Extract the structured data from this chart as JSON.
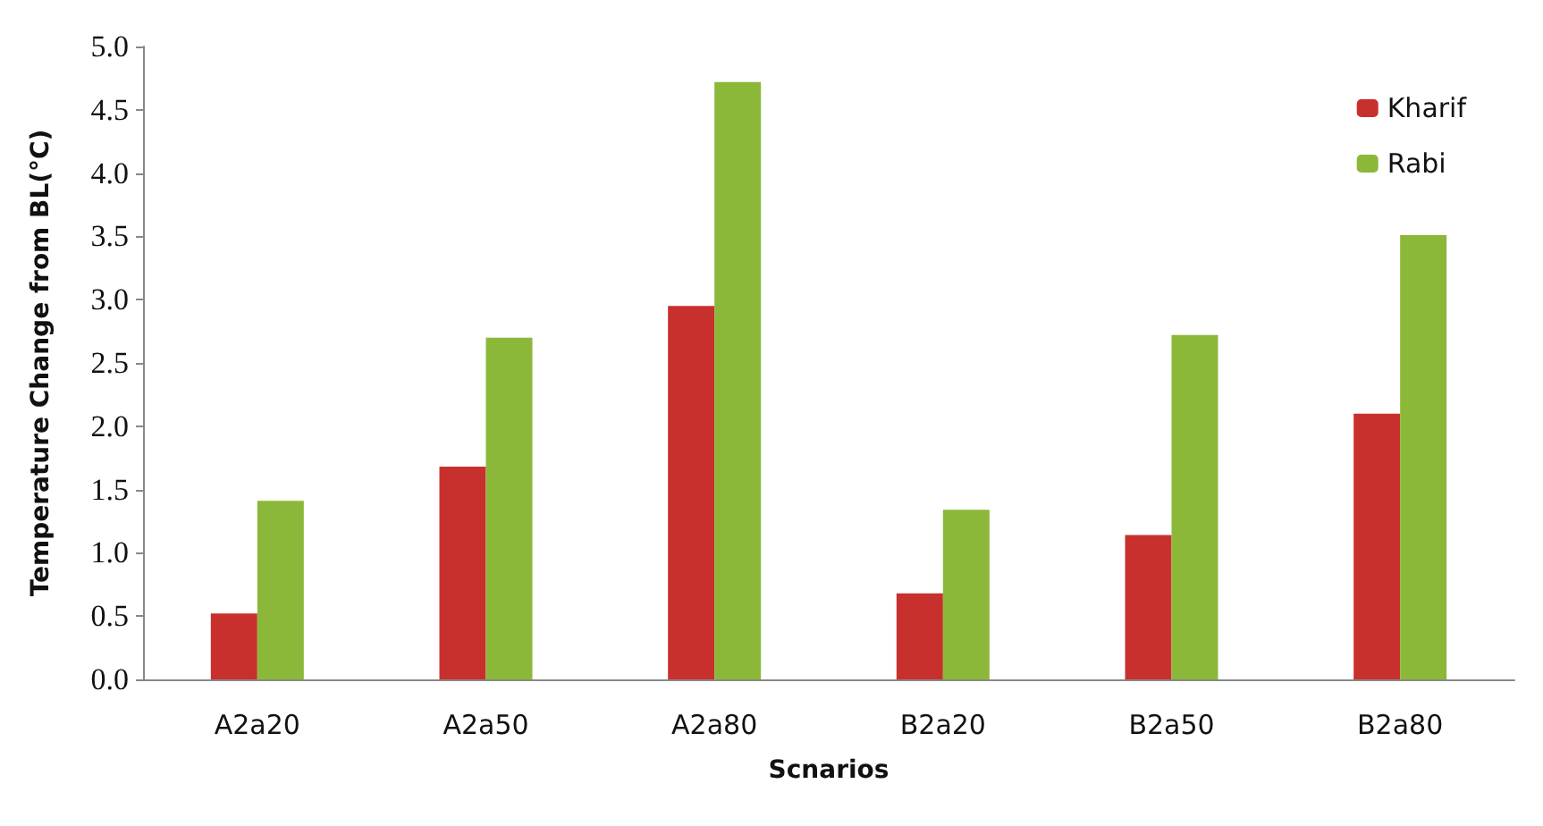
{
  "chart_data": {
    "type": "bar",
    "xlabel": "Scnarios",
    "ylabel": "Temperature Change from BL(°C)",
    "categories": [
      "A2a20",
      "A2a50",
      "A2a80",
      "B2a20",
      "B2a50",
      "B2a80"
    ],
    "series": [
      {
        "name": "Kharif",
        "color": "#c8302e",
        "values": [
          0.52,
          1.68,
          2.95,
          0.68,
          1.14,
          2.1
        ]
      },
      {
        "name": "Rabi",
        "color": "#8cb83a",
        "values": [
          1.41,
          2.7,
          4.72,
          1.34,
          2.72,
          3.51
        ]
      }
    ],
    "ylim": [
      0,
      5
    ],
    "yticks": [
      {
        "value": 0,
        "label": "0.0"
      },
      0.5,
      {
        "value": 1,
        "label": "1.0"
      },
      1.5,
      {
        "value": 2,
        "label": "2.0"
      },
      2.5,
      {
        "value": 3,
        "label": "3.0"
      },
      3.5,
      {
        "value": 4,
        "label": "4.0"
      },
      4.5,
      {
        "value": 5,
        "label": "5.0"
      }
    ],
    "legend": "top right"
  }
}
